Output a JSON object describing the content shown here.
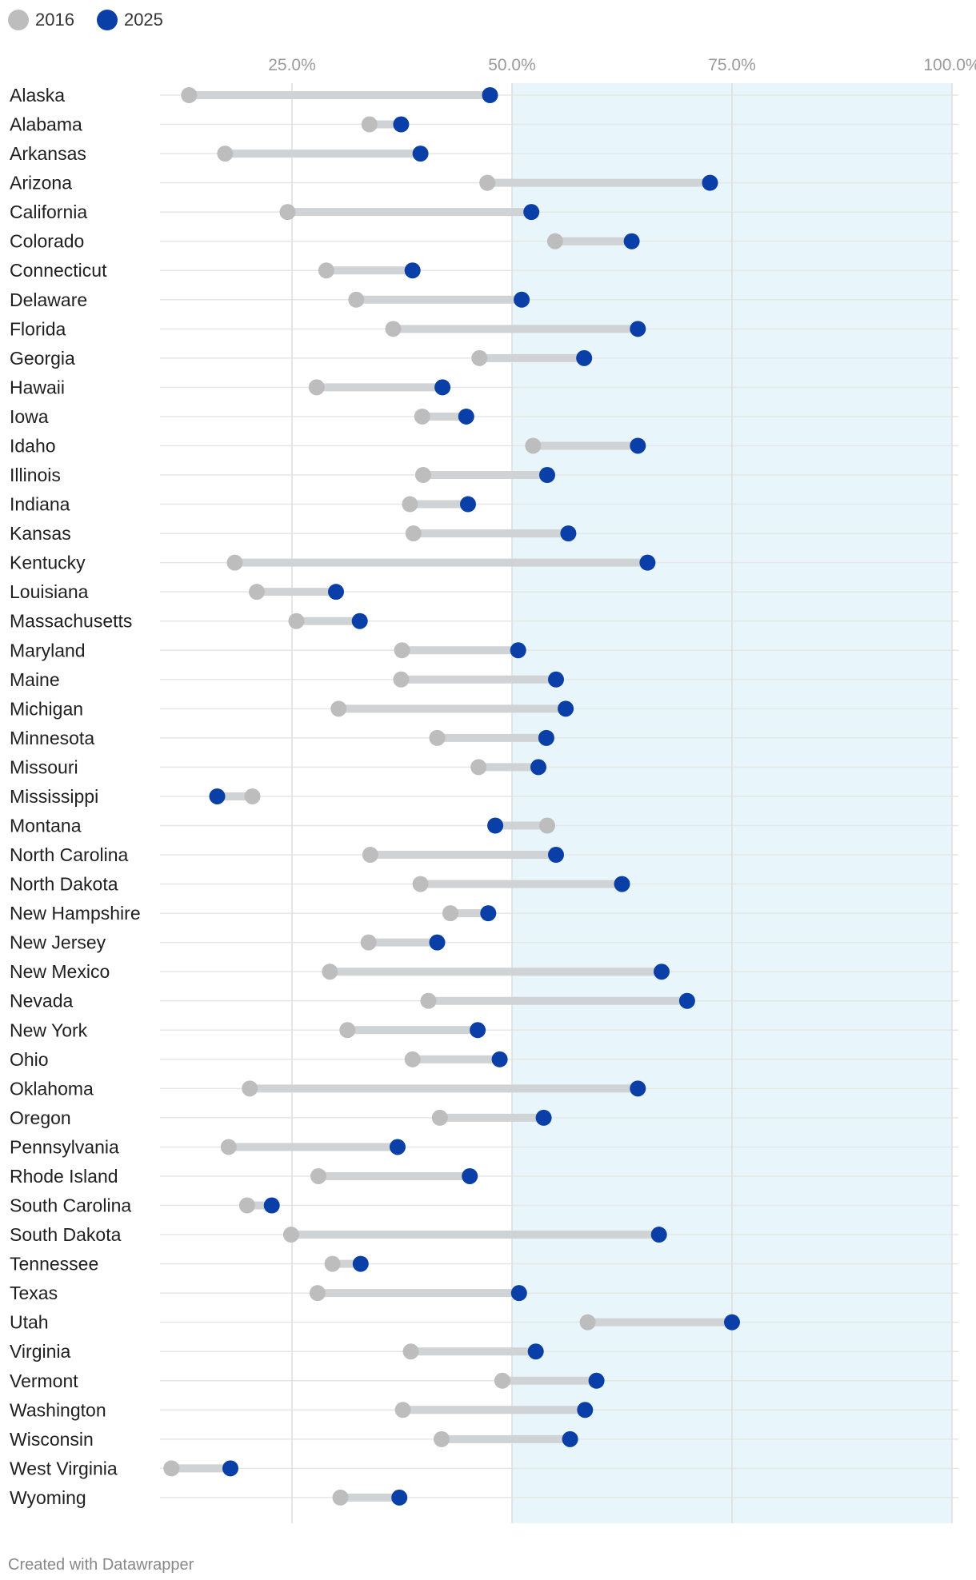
{
  "chart_data": {
    "type": "dumbbell",
    "xlim": [
      10,
      100
    ],
    "x_ticks": [
      25,
      50,
      75,
      100
    ],
    "x_tick_labels": [
      "25.0%",
      "50.0%",
      "75.0%",
      "100.0%"
    ],
    "highlight_range": [
      50,
      100
    ],
    "legend": [
      {
        "name": "2016",
        "color": "#bdbdbd"
      },
      {
        "name": "2025",
        "color": "#0a3fa8"
      }
    ],
    "rows": [
      {
        "state": "Alaska",
        "v2016": 13.3,
        "v2025": 47.5
      },
      {
        "state": "Alabama",
        "v2016": 33.8,
        "v2025": 37.4
      },
      {
        "state": "Arkansas",
        "v2016": 17.4,
        "v2025": 39.6
      },
      {
        "state": "Arizona",
        "v2016": 47.2,
        "v2025": 72.5
      },
      {
        "state": "California",
        "v2016": 24.5,
        "v2025": 52.2
      },
      {
        "state": "Colorado",
        "v2016": 54.9,
        "v2025": 63.6
      },
      {
        "state": "Connecticut",
        "v2016": 28.9,
        "v2025": 38.7
      },
      {
        "state": "Delaware",
        "v2016": 32.3,
        "v2025": 51.1
      },
      {
        "state": "Florida",
        "v2016": 36.5,
        "v2025": 64.3
      },
      {
        "state": "Georgia",
        "v2016": 46.3,
        "v2025": 58.2
      },
      {
        "state": "Hawaii",
        "v2016": 27.8,
        "v2025": 42.1
      },
      {
        "state": "Iowa",
        "v2016": 39.8,
        "v2025": 44.8
      },
      {
        "state": "Idaho",
        "v2016": 52.4,
        "v2025": 64.3
      },
      {
        "state": "Illinois",
        "v2016": 39.9,
        "v2025": 54.0
      },
      {
        "state": "Indiana",
        "v2016": 38.4,
        "v2025": 45.0
      },
      {
        "state": "Kansas",
        "v2016": 38.8,
        "v2025": 56.4
      },
      {
        "state": "Kentucky",
        "v2016": 18.5,
        "v2025": 65.4
      },
      {
        "state": "Louisiana",
        "v2016": 21.0,
        "v2025": 30.0
      },
      {
        "state": "Massachusetts",
        "v2016": 25.5,
        "v2025": 32.7
      },
      {
        "state": "Maryland",
        "v2016": 37.5,
        "v2025": 50.7
      },
      {
        "state": "Maine",
        "v2016": 37.4,
        "v2025": 55.0
      },
      {
        "state": "Michigan",
        "v2016": 30.3,
        "v2025": 56.1
      },
      {
        "state": "Minnesota",
        "v2016": 41.5,
        "v2025": 53.9
      },
      {
        "state": "Missouri",
        "v2016": 46.2,
        "v2025": 53.0
      },
      {
        "state": "Mississippi",
        "v2016": 20.5,
        "v2025": 16.5
      },
      {
        "state": "Montana",
        "v2016": 54.0,
        "v2025": 48.1
      },
      {
        "state": "North Carolina",
        "v2016": 33.9,
        "v2025": 55.0
      },
      {
        "state": "North Dakota",
        "v2016": 39.6,
        "v2025": 62.5
      },
      {
        "state": "New Hampshire",
        "v2016": 43.0,
        "v2025": 47.3
      },
      {
        "state": "New Jersey",
        "v2016": 33.7,
        "v2025": 41.5
      },
      {
        "state": "New Mexico",
        "v2016": 29.3,
        "v2025": 67.0
      },
      {
        "state": "Nevada",
        "v2016": 40.5,
        "v2025": 69.9
      },
      {
        "state": "New York",
        "v2016": 31.3,
        "v2025": 46.1
      },
      {
        "state": "Ohio",
        "v2016": 38.7,
        "v2025": 48.6
      },
      {
        "state": "Oklahoma",
        "v2016": 20.2,
        "v2025": 64.3
      },
      {
        "state": "Oregon",
        "v2016": 41.8,
        "v2025": 53.6
      },
      {
        "state": "Pennsylvania",
        "v2016": 17.8,
        "v2025": 37.0
      },
      {
        "state": "Rhode Island",
        "v2016": 28.0,
        "v2025": 45.2
      },
      {
        "state": "South Carolina",
        "v2016": 19.9,
        "v2025": 22.7
      },
      {
        "state": "South Dakota",
        "v2016": 24.9,
        "v2025": 66.7
      },
      {
        "state": "Tennessee",
        "v2016": 29.6,
        "v2025": 32.8
      },
      {
        "state": "Texas",
        "v2016": 27.9,
        "v2025": 50.8
      },
      {
        "state": "Utah",
        "v2016": 58.6,
        "v2025": 75.0
      },
      {
        "state": "Virginia",
        "v2016": 38.5,
        "v2025": 52.7
      },
      {
        "state": "Vermont",
        "v2016": 48.9,
        "v2025": 59.6
      },
      {
        "state": "Washington",
        "v2016": 37.6,
        "v2025": 58.3
      },
      {
        "state": "Wisconsin",
        "v2016": 42.0,
        "v2025": 56.6
      },
      {
        "state": "West Virginia",
        "v2016": 11.3,
        "v2025": 18.0
      },
      {
        "state": "Wyoming",
        "v2016": 30.5,
        "v2025": 37.2
      }
    ]
  },
  "footer": {
    "credit": "Created with Datawrapper"
  }
}
